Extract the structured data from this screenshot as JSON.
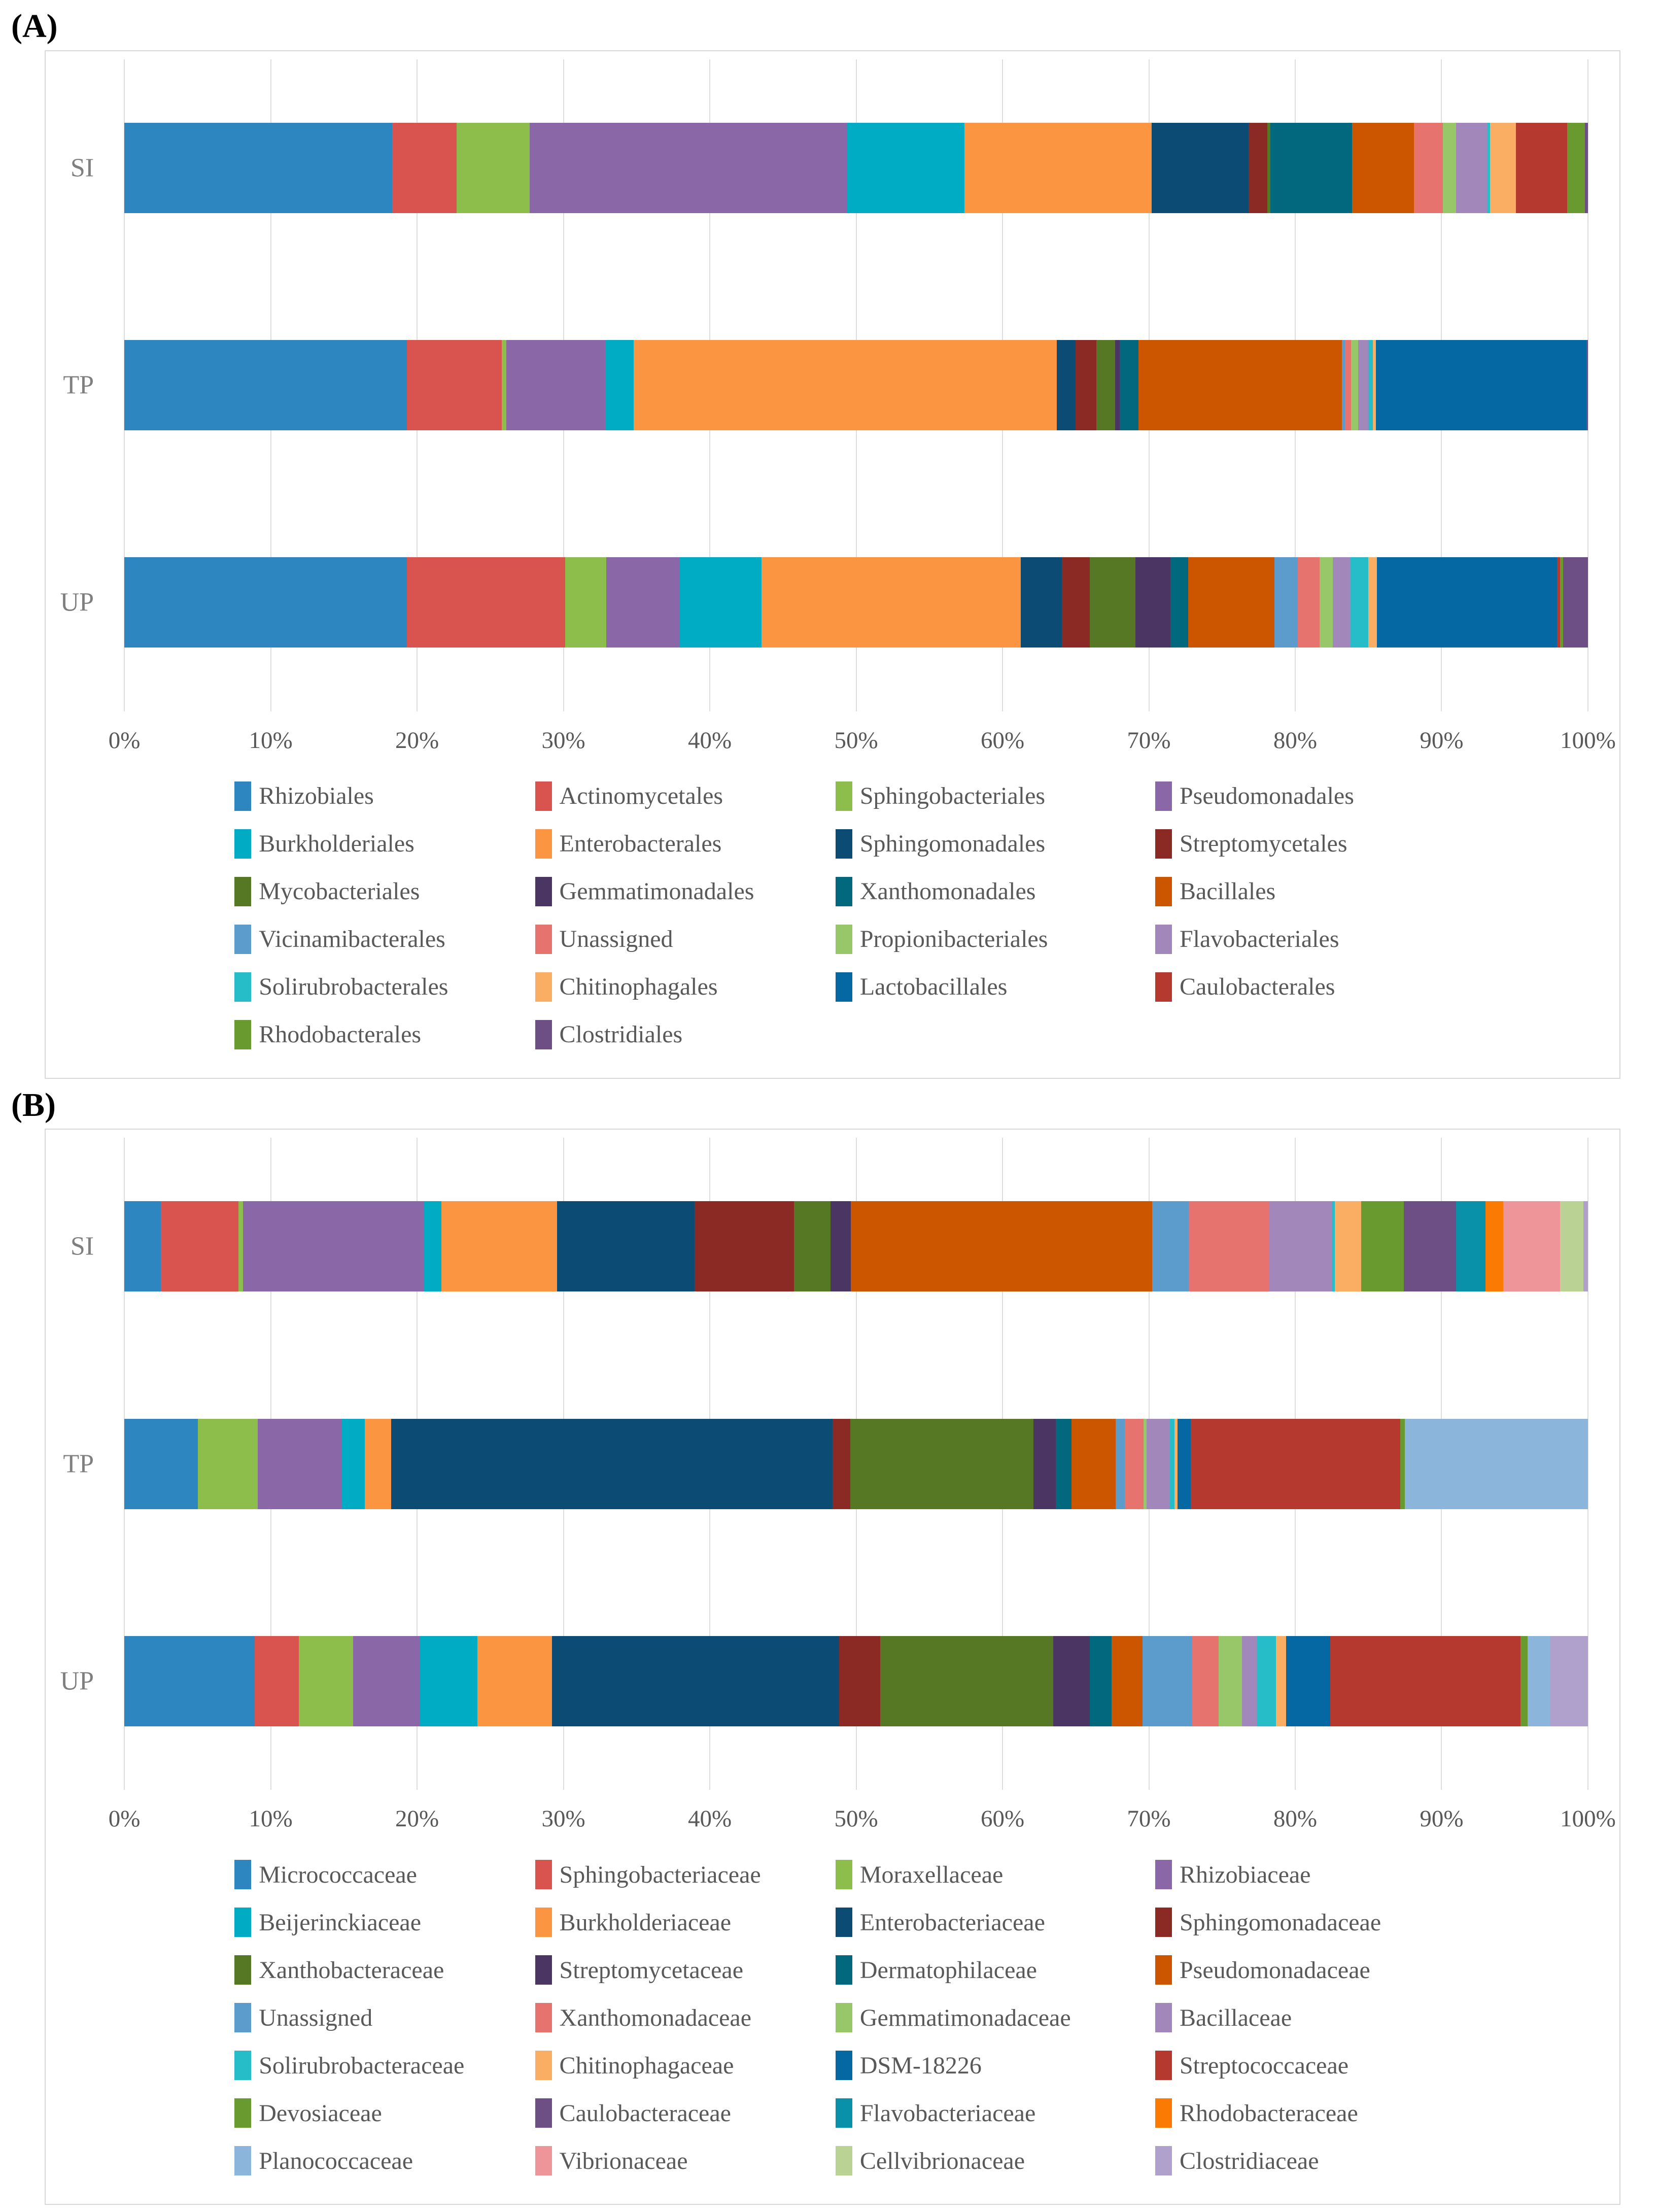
{
  "chart_data": [
    {
      "type": "bar",
      "stacked": true,
      "orientation": "horizontal",
      "title": "(A)",
      "unit": "percent relative abundance",
      "categories": [
        "SI",
        "TP",
        "UP"
      ],
      "x_ticks": [
        "0%",
        "10%",
        "20%",
        "30%",
        "40%",
        "50%",
        "60%",
        "70%",
        "80%",
        "90%",
        "100%"
      ],
      "xlim": [
        0,
        100
      ],
      "grid": true,
      "legend_position": "bottom",
      "series": [
        {
          "name": "Rhizobiales",
          "color": "#2E86C0",
          "values": [
            18.3,
            19.3,
            19.3
          ]
        },
        {
          "name": "Actinomycetales",
          "color": "#D9534F",
          "values": [
            4.4,
            6.5,
            10.8
          ]
        },
        {
          "name": "Sphingobacteriales",
          "color": "#8DBE4C",
          "values": [
            5.0,
            0.3,
            2.8
          ]
        },
        {
          "name": "Pseudomonadales",
          "color": "#8A68A8",
          "values": [
            21.7,
            6.8,
            5.0
          ]
        },
        {
          "name": "Burkholderiales",
          "color": "#00ACC4",
          "values": [
            8.0,
            1.9,
            5.6
          ]
        },
        {
          "name": "Enterobacterales",
          "color": "#FB9542",
          "values": [
            12.8,
            28.9,
            17.7
          ]
        },
        {
          "name": "Sphingomonadales",
          "color": "#0B4B74",
          "values": [
            6.6,
            1.3,
            2.8
          ]
        },
        {
          "name": "Streptomycetales",
          "color": "#8B2A24",
          "values": [
            1.3,
            1.4,
            1.9
          ]
        },
        {
          "name": "Mycobacteriales",
          "color": "#567723",
          "values": [
            0.2,
            1.3,
            3.1
          ]
        },
        {
          "name": "Gemmatimonadales",
          "color": "#4A3563",
          "values": [
            0,
            0.3,
            2.4
          ]
        },
        {
          "name": "Xanthomonadales",
          "color": "#02687D",
          "values": [
            5.6,
            1.3,
            1.2
          ]
        },
        {
          "name": "Bacillales",
          "color": "#CC5500",
          "values": [
            4.2,
            13.9,
            5.9
          ]
        },
        {
          "name": "Vicinamibacterales",
          "color": "#5B9CCC",
          "values": [
            0,
            0.2,
            1.6
          ]
        },
        {
          "name": "Unassigned",
          "color": "#E7736E",
          "values": [
            2.0,
            0.4,
            1.5
          ]
        },
        {
          "name": "Propionibacteriales",
          "color": "#97C768",
          "values": [
            0.9,
            0.5,
            0.9
          ]
        },
        {
          "name": "Flavobacteriales",
          "color": "#A288BA",
          "values": [
            2.1,
            0.7,
            1.2
          ]
        },
        {
          "name": "Solirubrobacterales",
          "color": "#26BCC8",
          "values": [
            0.2,
            0.3,
            1.2
          ]
        },
        {
          "name": "Chitinophagales",
          "color": "#FAAE64",
          "values": [
            1.8,
            0.2,
            0.6
          ]
        },
        {
          "name": "Lactobacillales",
          "color": "#0568A2",
          "values": [
            0,
            14.4,
            12.3
          ]
        },
        {
          "name": "Caulobacterales",
          "color": "#B6392F",
          "values": [
            3.5,
            0,
            0.2
          ]
        },
        {
          "name": "Rhodobacterales",
          "color": "#699A30",
          "values": [
            1.2,
            0,
            0.2
          ]
        },
        {
          "name": "Clostridiales",
          "color": "#6D4F86",
          "values": [
            0.2,
            0.1,
            1.7
          ]
        }
      ]
    },
    {
      "type": "bar",
      "stacked": true,
      "orientation": "horizontal",
      "title": "(B)",
      "unit": "percent relative abundance",
      "categories": [
        "SI",
        "TP",
        "UP"
      ],
      "x_ticks": [
        "0%",
        "10%",
        "20%",
        "30%",
        "40%",
        "50%",
        "60%",
        "70%",
        "80%",
        "90%",
        "100%"
      ],
      "xlim": [
        0,
        100
      ],
      "grid": true,
      "legend_position": "bottom",
      "series": [
        {
          "name": "Micrococcaceae",
          "color": "#2E86C0",
          "values": [
            2.5,
            5.0,
            8.9
          ]
        },
        {
          "name": "Sphingobacteriaceae",
          "color": "#D9534F",
          "values": [
            5.3,
            0,
            3.0
          ]
        },
        {
          "name": "Moraxellaceae",
          "color": "#8DBE4C",
          "values": [
            0.3,
            4.1,
            3.7
          ]
        },
        {
          "name": "Rhizobiaceae",
          "color": "#8A68A8",
          "values": [
            12.4,
            5.7,
            4.6
          ]
        },
        {
          "name": "Beijerinckiaceae",
          "color": "#00ACC4",
          "values": [
            1.2,
            1.6,
            3.9
          ]
        },
        {
          "name": "Burkholderiaceae",
          "color": "#FB9542",
          "values": [
            7.9,
            1.8,
            5.1
          ]
        },
        {
          "name": "Enterobacteriaceae",
          "color": "#0B4B74",
          "values": [
            9.4,
            30.1,
            19.6
          ]
        },
        {
          "name": "Sphingomonadaceae",
          "color": "#8B2A24",
          "values": [
            6.8,
            1.2,
            2.8
          ]
        },
        {
          "name": "Xanthobacteraceae",
          "color": "#567723",
          "values": [
            2.5,
            12.5,
            11.8
          ]
        },
        {
          "name": "Streptomycetaceae",
          "color": "#4A3563",
          "values": [
            1.4,
            1.5,
            2.5
          ]
        },
        {
          "name": "Dermatophilaceae",
          "color": "#02687D",
          "values": [
            0,
            1.1,
            1.5
          ]
        },
        {
          "name": "Pseudomonadaceae",
          "color": "#CC5500",
          "values": [
            20.6,
            3.0,
            2.1
          ]
        },
        {
          "name": "Unassigned",
          "color": "#5B9CCC",
          "values": [
            2.5,
            0.6,
            3.4
          ]
        },
        {
          "name": "Xanthomonadaceae",
          "color": "#E7736E",
          "values": [
            5.5,
            1.3,
            1.8
          ]
        },
        {
          "name": "Gemmatimonadaceae",
          "color": "#97C768",
          "values": [
            0,
            0.2,
            1.6
          ]
        },
        {
          "name": "Bacillaceae",
          "color": "#A288BA",
          "values": [
            4.3,
            1.6,
            1.0
          ]
        },
        {
          "name": "Solirubrobacteraceae",
          "color": "#26BCC8",
          "values": [
            0.2,
            0.3,
            1.3
          ]
        },
        {
          "name": "Chitinophagaceae",
          "color": "#FAAE64",
          "values": [
            1.8,
            0.2,
            0.7
          ]
        },
        {
          "name": "DSM-18226",
          "color": "#0568A2",
          "values": [
            0,
            0.9,
            3.0
          ]
        },
        {
          "name": "Streptococcaceae",
          "color": "#B6392F",
          "values": [
            0,
            14.3,
            13.0
          ]
        },
        {
          "name": "Devosiaceae",
          "color": "#699A30",
          "values": [
            2.9,
            0.3,
            0.5
          ]
        },
        {
          "name": "Caulobacteraceae",
          "color": "#6D4F86",
          "values": [
            3.6,
            0,
            0
          ]
        },
        {
          "name": "Flavobacteriaceae",
          "color": "#0891A8",
          "values": [
            2.0,
            0,
            0
          ]
        },
        {
          "name": "Rhodobacteraceae",
          "color": "#FB7A04",
          "values": [
            1.2,
            0,
            0
          ]
        },
        {
          "name": "Planococcaceae",
          "color": "#8CB5DC",
          "values": [
            0,
            12.5,
            1.5
          ]
        },
        {
          "name": "Vibrionaceae",
          "color": "#ED9598",
          "values": [
            3.9,
            0,
            0
          ]
        },
        {
          "name": "Cellvibrionaceae",
          "color": "#BAD395",
          "values": [
            1.6,
            0,
            0
          ]
        },
        {
          "name": "Clostridiaceae",
          "color": "#B0A0CC",
          "values": [
            0.3,
            0,
            2.6
          ]
        }
      ]
    }
  ]
}
